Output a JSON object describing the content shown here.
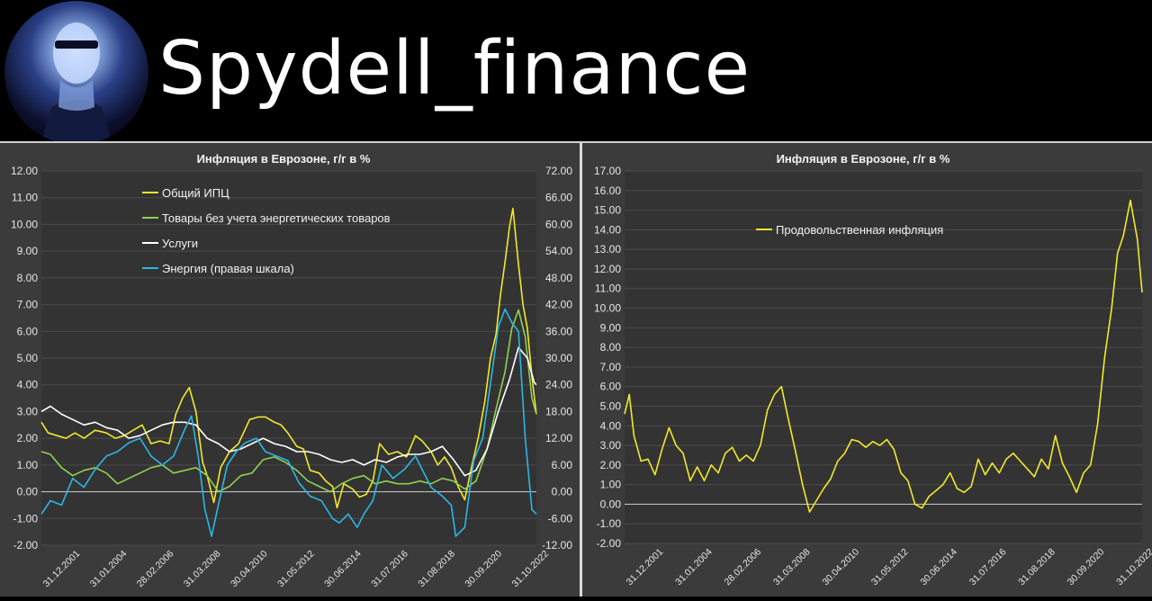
{
  "header": {
    "channel_name": "Spydell_finance"
  },
  "chart_data": [
    {
      "type": "line",
      "title": "Инфляция в Еврозоне, г/г в %",
      "x_tick_labels": [
        "31.12.2001",
        "31.01.2004",
        "28.02.2006",
        "31.03.2008",
        "30.04.2010",
        "31.05.2012",
        "30.06.2014",
        "31.07.2016",
        "31.08.2018",
        "30.09.2020",
        "31.10.2022"
      ],
      "x_range": [
        2001.9,
        2024.0
      ],
      "y_left": {
        "range": [
          -2,
          12
        ],
        "step": 1,
        "ticks": [
          "12.00",
          "11.00",
          "10.00",
          "9.00",
          "8.00",
          "7.00",
          "6.00",
          "5.00",
          "4.00",
          "3.00",
          "2.00",
          "1.00",
          "0.00",
          "-1.00",
          "-2.00"
        ]
      },
      "y_right": {
        "range": [
          -12,
          72
        ],
        "step": 6,
        "ticks": [
          "72.00",
          "66.00",
          "60.00",
          "54.00",
          "48.00",
          "42.00",
          "36.00",
          "30.00",
          "24.00",
          "18.00",
          "12.00",
          "6.00",
          "0.00",
          "-6.00",
          "-12.00"
        ]
      },
      "legend_position": "top-left",
      "series": [
        {
          "name": "Общий ИПЦ",
          "color": "#f2e82a",
          "axis": "left",
          "x": [
            2001.9,
            2002.2,
            2002.6,
            2003.0,
            2003.4,
            2003.8,
            2004.3,
            2004.8,
            2005.2,
            2005.6,
            2006.0,
            2006.4,
            2006.8,
            2007.2,
            2007.6,
            2007.9,
            2008.2,
            2008.5,
            2008.8,
            2009.1,
            2009.3,
            2009.6,
            2009.9,
            2010.3,
            2010.7,
            2011.2,
            2011.6,
            2011.9,
            2012.3,
            2012.6,
            2012.9,
            2013.3,
            2013.6,
            2013.9,
            2014.3,
            2014.6,
            2014.9,
            2015.1,
            2015.4,
            2015.8,
            2016.1,
            2016.4,
            2016.7,
            2017.0,
            2017.4,
            2017.8,
            2018.2,
            2018.6,
            2018.9,
            2019.3,
            2019.6,
            2019.9,
            2020.2,
            2020.5,
            2020.8,
            2021.1,
            2021.4,
            2021.7,
            2021.95,
            2022.2,
            2022.4,
            2022.6,
            2022.8,
            2022.95,
            2023.2,
            2023.4,
            2023.6,
            2023.8,
            2024.0
          ],
          "y": [
            2.6,
            2.2,
            2.1,
            2.0,
            2.2,
            2.0,
            2.3,
            2.2,
            2.0,
            2.1,
            2.3,
            2.5,
            1.8,
            1.9,
            1.8,
            2.9,
            3.5,
            3.9,
            3.0,
            1.1,
            0.6,
            -0.4,
            0.9,
            1.5,
            1.8,
            2.7,
            2.8,
            2.8,
            2.6,
            2.5,
            2.2,
            1.7,
            1.6,
            0.8,
            0.7,
            0.4,
            0.2,
            -0.6,
            0.3,
            0.1,
            -0.2,
            -0.1,
            0.4,
            1.8,
            1.4,
            1.5,
            1.3,
            2.1,
            1.9,
            1.5,
            1.0,
            1.3,
            0.9,
            0.2,
            -0.3,
            0.9,
            2.0,
            3.4,
            5.0,
            5.9,
            7.4,
            8.6,
            9.9,
            10.6,
            8.5,
            7.0,
            6.1,
            4.3,
            2.9
          ]
        },
        {
          "name": "Товары без учета энергетических товаров",
          "color": "#8fd14f",
          "axis": "left",
          "x": [
            2001.9,
            2002.3,
            2002.8,
            2003.3,
            2003.8,
            2004.3,
            2004.8,
            2005.3,
            2005.8,
            2006.3,
            2006.8,
            2007.3,
            2007.8,
            2008.3,
            2008.8,
            2009.3,
            2009.8,
            2010.3,
            2010.8,
            2011.3,
            2011.8,
            2012.3,
            2012.8,
            2013.3,
            2013.8,
            2014.3,
            2014.8,
            2015.3,
            2015.8,
            2016.3,
            2016.8,
            2017.3,
            2017.8,
            2018.3,
            2018.8,
            2019.3,
            2019.8,
            2020.3,
            2020.8,
            2021.3,
            2021.8,
            2022.2,
            2022.6,
            2022.9,
            2023.2,
            2023.5,
            2023.8,
            2024.0
          ],
          "y": [
            1.5,
            1.4,
            0.9,
            0.6,
            0.8,
            0.9,
            0.7,
            0.3,
            0.5,
            0.7,
            0.9,
            1.0,
            0.7,
            0.8,
            0.9,
            0.6,
            0.0,
            0.2,
            0.6,
            0.7,
            1.2,
            1.3,
            1.1,
            0.8,
            0.4,
            0.2,
            0.0,
            0.3,
            0.5,
            0.6,
            0.3,
            0.4,
            0.3,
            0.3,
            0.4,
            0.3,
            0.5,
            0.4,
            0.1,
            0.4,
            1.6,
            3.1,
            4.5,
            6.1,
            6.8,
            5.8,
            3.5,
            2.9
          ]
        },
        {
          "name": "Услуги",
          "color": "#ffffff",
          "axis": "left",
          "x": [
            2001.9,
            2002.3,
            2002.8,
            2003.3,
            2003.8,
            2004.3,
            2004.8,
            2005.3,
            2005.8,
            2006.3,
            2006.8,
            2007.3,
            2007.8,
            2008.3,
            2008.8,
            2009.3,
            2009.8,
            2010.3,
            2010.8,
            2011.3,
            2011.8,
            2012.3,
            2012.8,
            2013.3,
            2013.8,
            2014.3,
            2014.8,
            2015.3,
            2015.8,
            2016.3,
            2016.8,
            2017.3,
            2017.8,
            2018.3,
            2018.8,
            2019.3,
            2019.8,
            2020.3,
            2020.8,
            2021.3,
            2021.8,
            2022.3,
            2022.8,
            2023.2,
            2023.6,
            2023.9,
            2024.0
          ],
          "y": [
            3.0,
            3.2,
            2.9,
            2.7,
            2.5,
            2.6,
            2.4,
            2.3,
            2.0,
            2.1,
            2.3,
            2.5,
            2.6,
            2.6,
            2.5,
            2.0,
            1.8,
            1.5,
            1.6,
            1.8,
            2.0,
            1.8,
            1.7,
            1.5,
            1.5,
            1.4,
            1.2,
            1.1,
            1.2,
            1.0,
            1.2,
            1.1,
            1.3,
            1.4,
            1.4,
            1.5,
            1.7,
            1.2,
            0.6,
            0.8,
            1.6,
            3.0,
            4.2,
            5.4,
            5.0,
            4.1,
            4.0
          ]
        },
        {
          "name": "Энергия (правая шкала)",
          "color": "#2ab7e6",
          "axis": "right",
          "x": [
            2001.9,
            2002.3,
            2002.8,
            2003.3,
            2003.8,
            2004.3,
            2004.8,
            2005.3,
            2005.8,
            2006.3,
            2006.8,
            2007.3,
            2007.8,
            2008.3,
            2008.6,
            2008.9,
            2009.2,
            2009.5,
            2009.8,
            2010.2,
            2010.6,
            2011.0,
            2011.5,
            2011.9,
            2012.4,
            2012.9,
            2013.4,
            2013.9,
            2014.4,
            2014.9,
            2015.2,
            2015.6,
            2016.0,
            2016.3,
            2016.7,
            2017.1,
            2017.6,
            2018.1,
            2018.6,
            2018.9,
            2019.3,
            2019.8,
            2020.2,
            2020.4,
            2020.8,
            2021.2,
            2021.6,
            2022.0,
            2022.3,
            2022.6,
            2022.9,
            2023.2,
            2023.5,
            2023.8,
            2024.0
          ],
          "y": [
            -5,
            -2,
            -3,
            3,
            1,
            5,
            8,
            9,
            11,
            12,
            8,
            6,
            8,
            14,
            17,
            8,
            -4,
            -10,
            -3,
            6,
            9,
            11,
            12,
            9,
            8,
            7,
            2,
            -1,
            -2,
            -6,
            -7,
            -5,
            -8,
            -5,
            -2,
            6,
            3,
            5,
            8,
            5,
            1,
            -1,
            -3,
            -10,
            -8,
            7,
            12,
            26,
            37,
            41,
            38,
            36,
            12,
            -4,
            -5
          ]
        }
      ]
    },
    {
      "type": "line",
      "title": "Инфляция в Еврозоне, г/г в %",
      "x_tick_labels": [
        "31.12.2001",
        "31.01.2004",
        "28.02.2006",
        "31.03.2008",
        "30.04.2010",
        "31.05.2012",
        "30.06.2014",
        "31.07.2016",
        "31.08.2018",
        "30.09.2020",
        "31.10.2022"
      ],
      "x_range": [
        2001.9,
        2024.0
      ],
      "y_left": {
        "range": [
          -2,
          17
        ],
        "step": 1,
        "ticks": [
          "17.00",
          "16.00",
          "15.00",
          "14.00",
          "13.00",
          "12.00",
          "11.00",
          "10.00",
          "9.00",
          "8.00",
          "7.00",
          "6.00",
          "5.00",
          "4.00",
          "3.00",
          "2.00",
          "1.00",
          "0.00",
          "-1.00",
          "-2.00"
        ]
      },
      "legend_position": "top-center",
      "series": [
        {
          "name": "Продовольственная инфляция",
          "color": "#f2e82a",
          "axis": "left",
          "x": [
            2001.9,
            2002.1,
            2002.3,
            2002.6,
            2002.9,
            2003.2,
            2003.5,
            2003.8,
            2004.1,
            2004.4,
            2004.7,
            2005.0,
            2005.3,
            2005.6,
            2005.9,
            2006.2,
            2006.5,
            2006.8,
            2007.1,
            2007.4,
            2007.7,
            2008.0,
            2008.3,
            2008.6,
            2008.9,
            2009.2,
            2009.5,
            2009.8,
            2010.1,
            2010.4,
            2010.7,
            2011.0,
            2011.3,
            2011.6,
            2011.9,
            2012.2,
            2012.5,
            2012.8,
            2013.1,
            2013.4,
            2013.7,
            2014.0,
            2014.3,
            2014.6,
            2014.9,
            2015.2,
            2015.5,
            2015.8,
            2016.1,
            2016.4,
            2016.7,
            2017.0,
            2017.3,
            2017.6,
            2017.9,
            2018.2,
            2018.5,
            2018.8,
            2019.1,
            2019.4,
            2019.7,
            2020.0,
            2020.3,
            2020.6,
            2020.9,
            2021.2,
            2021.5,
            2021.8,
            2022.1,
            2022.4,
            2022.7,
            2022.95,
            2023.2,
            2023.5,
            2023.8,
            2024.0
          ],
          "y": [
            4.6,
            5.6,
            3.5,
            2.2,
            2.3,
            1.5,
            2.8,
            3.9,
            3.0,
            2.6,
            1.2,
            1.9,
            1.2,
            2.0,
            1.6,
            2.6,
            2.9,
            2.2,
            2.5,
            2.2,
            3.0,
            4.8,
            5.6,
            6.0,
            4.3,
            2.7,
            1.0,
            -0.4,
            0.2,
            0.8,
            1.3,
            2.2,
            2.6,
            3.3,
            3.2,
            2.9,
            3.2,
            3.0,
            3.3,
            2.8,
            1.6,
            1.2,
            0.0,
            -0.2,
            0.4,
            0.7,
            1.0,
            1.6,
            0.8,
            0.6,
            0.9,
            2.3,
            1.5,
            2.1,
            1.6,
            2.3,
            2.6,
            2.2,
            1.8,
            1.4,
            2.3,
            1.8,
            3.5,
            2.1,
            1.4,
            0.6,
            1.6,
            2.0,
            4.1,
            7.5,
            10.0,
            12.8,
            13.7,
            15.5,
            13.5,
            10.8
          ]
        }
      ]
    }
  ]
}
